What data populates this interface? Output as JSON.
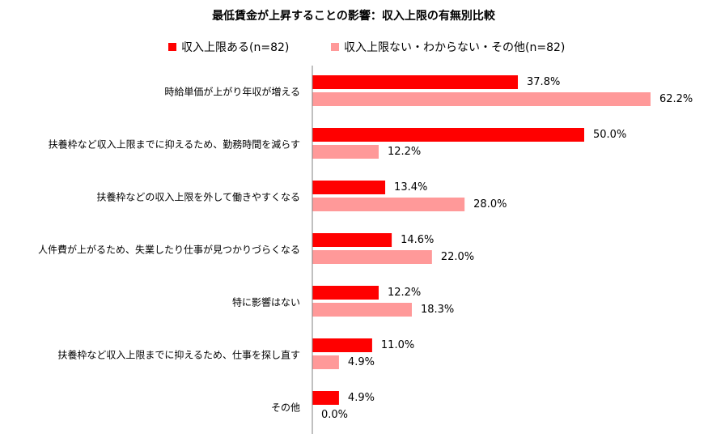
{
  "chart_data": {
    "type": "bar",
    "orientation": "horizontal",
    "title": "最低賃金が上昇することの影響：収入上限の有無別比較",
    "legend_placement": "top",
    "categories": [
      "時給単価が上がり年収が増える",
      "扶養枠など収入上限までに抑えるため、勤務時間を減らす",
      "扶養枠などの収入上限を外して働きやすくなる",
      "人件費が上がるため、失業したり仕事が見つかりづらくなる",
      "特に影響はない",
      "扶養枠など収入上限までに抑えるため、仕事を探し直す",
      "その他"
    ],
    "series": [
      {
        "name": "収入上限ある(n=82)",
        "color": "#ff0000",
        "values": [
          37.8,
          50.0,
          13.4,
          14.6,
          12.2,
          11.0,
          4.9
        ],
        "labels": [
          "37.8%",
          "50.0%",
          "13.4%",
          "14.6%",
          "12.2%",
          "11.0%",
          "4.9%"
        ]
      },
      {
        "name": "収入上限ない・わからない・その他(n=82)",
        "color": "#ff9999",
        "values": [
          62.2,
          12.2,
          28.0,
          22.0,
          18.3,
          4.9,
          0.0
        ],
        "labels": [
          "62.2%",
          "12.2%",
          "28.0%",
          "22.0%",
          "18.3%",
          "4.9%",
          "0.0%"
        ]
      }
    ],
    "xlim": [
      0,
      70
    ],
    "grid": false
  }
}
